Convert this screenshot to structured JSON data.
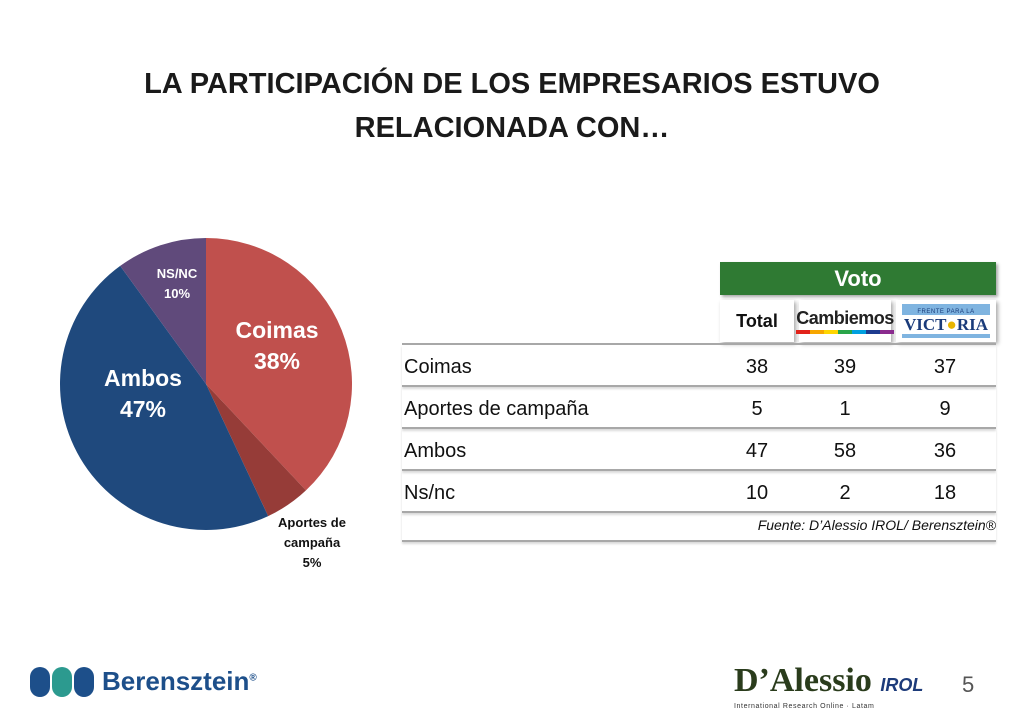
{
  "title": {
    "line1": "LA PARTICIPACIÓN DE LOS EMPRESARIOS ESTUVO",
    "line2": "RELACIONADA CON…"
  },
  "chart_data": {
    "type": "pie",
    "slices": [
      {
        "label": "Coimas",
        "value": 38,
        "text": "38%",
        "color": "#c0504d"
      },
      {
        "label": "Aportes de campaña",
        "value": 5,
        "text": "5%",
        "color": "#963c38"
      },
      {
        "label": "Ambos",
        "value": 47,
        "text": "47%",
        "color": "#1f497d"
      },
      {
        "label": "NS/NC",
        "value": 10,
        "text": "10%",
        "color": "#604a7b"
      }
    ]
  },
  "table": {
    "group_header": "Voto",
    "columns": [
      "Total",
      "Cambiemos",
      "FRENTE PARA LA VICTORIA"
    ],
    "rows": [
      {
        "label": "Coimas",
        "values": [
          "38",
          "39",
          "37"
        ]
      },
      {
        "label": "Aportes de campaña",
        "values": [
          "5",
          "1",
          "9"
        ]
      },
      {
        "label": "Ambos",
        "values": [
          "47",
          "58",
          "36"
        ]
      },
      {
        "label": "Ns/nc",
        "values": [
          "10",
          "2",
          "18"
        ]
      }
    ],
    "source": "Fuente: D’Alessio IROL/ Berensztein®"
  },
  "logos": {
    "cambiemos": "Cambiemos",
    "fpv_small": "FRENTE PARA LA",
    "fpv_big_a": "VICT",
    "fpv_big_b": "RIA",
    "berensztein": "Berensztein",
    "berensztein_mark": "®",
    "dalessio": "D’Alessio",
    "irol": "IROL",
    "dalessio_sub": "International Research Online · Latam"
  },
  "page_number": "5",
  "colors": {
    "voto_header": "#2f7a33",
    "berensztein_blue": "#1d4f8a"
  }
}
